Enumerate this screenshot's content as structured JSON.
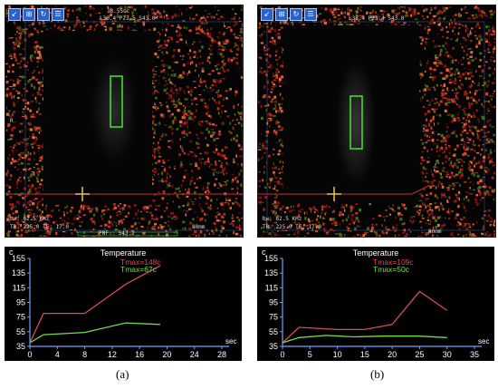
{
  "caption_a": "(a)",
  "caption_b": "(b)",
  "mri_a": {
    "header_top": "13.55cc",
    "header_line": "L36.4 P23.5 S43.0",
    "left_label": "R",
    "footer_bw": "bw: 62.5 KHz",
    "footer_tr": "TR: 225.0 TE: 17.0",
    "footer_prf": "PRF : S43.2",
    "footer_scale": "80mm",
    "toolbar": [
      "↙",
      "⊞",
      "↻",
      "☰"
    ]
  },
  "mri_b": {
    "header_line": "L35.4 P23.4 S43.0",
    "footer_bw": "bw: 62.5 KHz",
    "footer_tr": "TR: 225.0 TE: 17.0",
    "footer_scale": "80mm",
    "toolbar": [
      "↙",
      "⊞",
      "↻",
      "☰"
    ]
  },
  "chart_data": [
    {
      "type": "line",
      "title": "Temperature",
      "ylabel": "c",
      "xlabel": "sec",
      "ylim": [
        35,
        155
      ],
      "xlim": [
        0,
        28
      ],
      "yticks": [
        35,
        55,
        75,
        95,
        115,
        135,
        155
      ],
      "xticks": [
        0,
        4,
        8,
        12,
        16,
        20,
        24,
        28
      ],
      "series": [
        {
          "name": "Tmax=148c",
          "color": "#d84c54",
          "x": [
            0,
            2,
            8,
            14,
            19
          ],
          "y": [
            40,
            80,
            80,
            120,
            145
          ]
        },
        {
          "name": "Tmax=67c",
          "color": "#6ee04a",
          "x": [
            0,
            2,
            8,
            14,
            19
          ],
          "y": [
            40,
            51,
            54,
            67,
            65
          ]
        }
      ]
    },
    {
      "type": "line",
      "title": "Temperature",
      "ylabel": "c",
      "xlabel": "sec",
      "ylim": [
        35,
        155
      ],
      "xlim": [
        0,
        35
      ],
      "yticks": [
        35,
        55,
        75,
        95,
        115,
        135,
        155
      ],
      "xticks": [
        0,
        5,
        10,
        15,
        20,
        25,
        30,
        35
      ],
      "series": [
        {
          "name": "Tmax=109c",
          "color": "#d84c54",
          "x": [
            0,
            3,
            10,
            15,
            20,
            25,
            30
          ],
          "y": [
            40,
            61,
            58,
            58,
            65,
            110,
            84
          ]
        },
        {
          "name": "Tmax=50c",
          "color": "#6ee04a",
          "x": [
            0,
            3,
            8,
            13,
            18,
            25,
            30
          ],
          "y": [
            40,
            47,
            50,
            48,
            49,
            49,
            47
          ]
        }
      ]
    }
  ]
}
